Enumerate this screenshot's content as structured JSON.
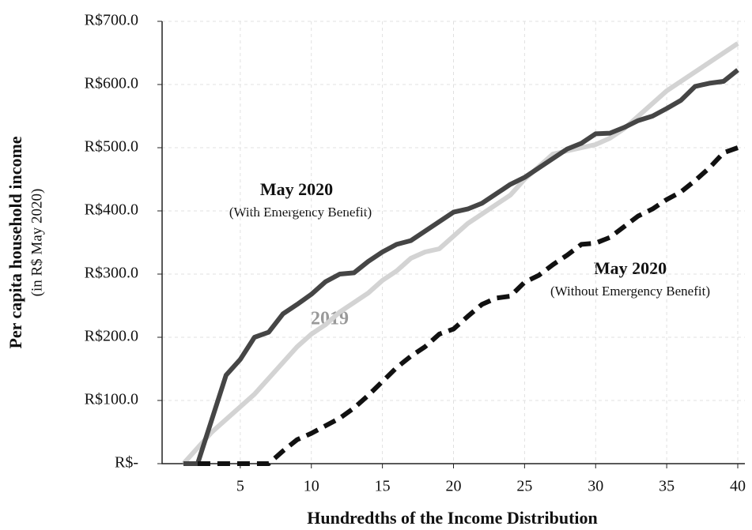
{
  "chart_data": {
    "type": "line",
    "x_label": "Hundredths of the Income Distribution",
    "y_label": "Per capita household income",
    "y_sublabel": "(in R$ May 2020)",
    "x": [
      1,
      2,
      3,
      4,
      5,
      6,
      7,
      8,
      9,
      10,
      11,
      12,
      13,
      14,
      15,
      16,
      17,
      18,
      19,
      20,
      21,
      22,
      23,
      24,
      25,
      26,
      27,
      28,
      29,
      30,
      31,
      32,
      33,
      34,
      35,
      36,
      37,
      38,
      39,
      40
    ],
    "series": [
      {
        "name": "2019",
        "color": "#d3d3d3",
        "dash": false,
        "values": [
          0,
          25,
          50,
          70,
          90,
          110,
          135,
          160,
          185,
          205,
          220,
          240,
          255,
          270,
          290,
          305,
          325,
          335,
          340,
          360,
          380,
          395,
          410,
          425,
          450,
          470,
          490,
          495,
          500,
          505,
          515,
          530,
          550,
          570,
          590,
          605,
          620,
          635,
          650,
          665
        ]
      },
      {
        "name": "May 2020",
        "note": "(With Emergency Benefit)",
        "color": "#454545",
        "dash": false,
        "values": [
          0,
          0,
          70,
          140,
          165,
          200,
          208,
          237,
          252,
          268,
          288,
          300,
          302,
          320,
          335,
          347,
          353,
          368,
          383,
          398,
          403,
          412,
          427,
          442,
          453,
          468,
          483,
          498,
          507,
          522,
          523,
          532,
          543,
          550,
          562,
          575,
          597,
          602,
          605,
          623
        ]
      },
      {
        "name": "May 2020",
        "note": "(Without Emergency Benefit)",
        "color": "#111111",
        "dash": true,
        "values": [
          null,
          0,
          0,
          0,
          0,
          0,
          0,
          20,
          38,
          48,
          60,
          72,
          88,
          108,
          130,
          152,
          170,
          185,
          205,
          213,
          233,
          252,
          262,
          265,
          287,
          298,
          315,
          330,
          347,
          349,
          358,
          375,
          392,
          403,
          418,
          430,
          448,
          468,
          492,
          500
        ]
      }
    ],
    "xlim": [
      -0.5,
      40.5
    ],
    "ylim": [
      0,
      700
    ],
    "xticks": [
      5,
      10,
      15,
      20,
      25,
      30,
      35,
      40
    ],
    "yticks": [
      {
        "value": 0,
        "label": "R$-"
      },
      {
        "value": 100,
        "label": "R$100.0"
      },
      {
        "value": 200,
        "label": "R$200.0"
      },
      {
        "value": 300,
        "label": "R$300.0"
      },
      {
        "value": 400,
        "label": "R$400.0"
      },
      {
        "value": 500,
        "label": "R$500.0"
      },
      {
        "value": 600,
        "label": "R$600.0"
      },
      {
        "value": 700,
        "label": "R$700.0"
      }
    ],
    "grid": true
  }
}
